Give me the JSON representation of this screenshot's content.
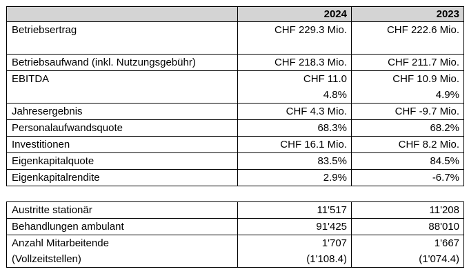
{
  "header": {
    "col_label": "",
    "year1": "2024",
    "year2": "2023"
  },
  "rows": [
    {
      "label": "Betriebsertrag",
      "v1": "CHF 229.3 Mio.",
      "v2": "CHF 222.6 Mio."
    },
    {
      "label": "Betriebsaufwand (inkl. Nutzungsgebühr)",
      "v1": "CHF 218.3 Mio.",
      "v2": "CHF 211.7 Mio."
    },
    {
      "label": "EBITDA",
      "v1": "CHF 11.0",
      "v1b": "4.8%",
      "v2": "CHF 10.9 Mio.",
      "v2b": "4.9%"
    },
    {
      "label": "Jahresergebnis",
      "v1": "CHF 4.3 Mio.",
      "v2": "CHF -9.7 Mio."
    },
    {
      "label": "Personalaufwandsquote",
      "v1": "68.3%",
      "v2": "68.2%"
    },
    {
      "label": "Investitionen",
      "v1": "CHF 16.1 Mio.",
      "v2": "CHF 8.2 Mio."
    },
    {
      "label": "Eigenkapitalquote",
      "v1": "83.5%",
      "v2": "84.5%"
    },
    {
      "label": "Eigenkapitalrendite",
      "v1": "2.9%",
      "v2": "-6.7%"
    }
  ],
  "rows2": [
    {
      "label": "Austritte stationär",
      "v1": "11'517",
      "v2": "11'208"
    },
    {
      "label": "Behandlungen ambulant",
      "v1": "91'425",
      "v2": "88'010"
    },
    {
      "label": "Anzahl Mitarbeitende",
      "label_b": "(Vollzeitstellen)",
      "v1": "1'707",
      "v1b": "(1'108.4)",
      "v2": "1'667",
      "v2b": "(1'074.4)"
    }
  ]
}
